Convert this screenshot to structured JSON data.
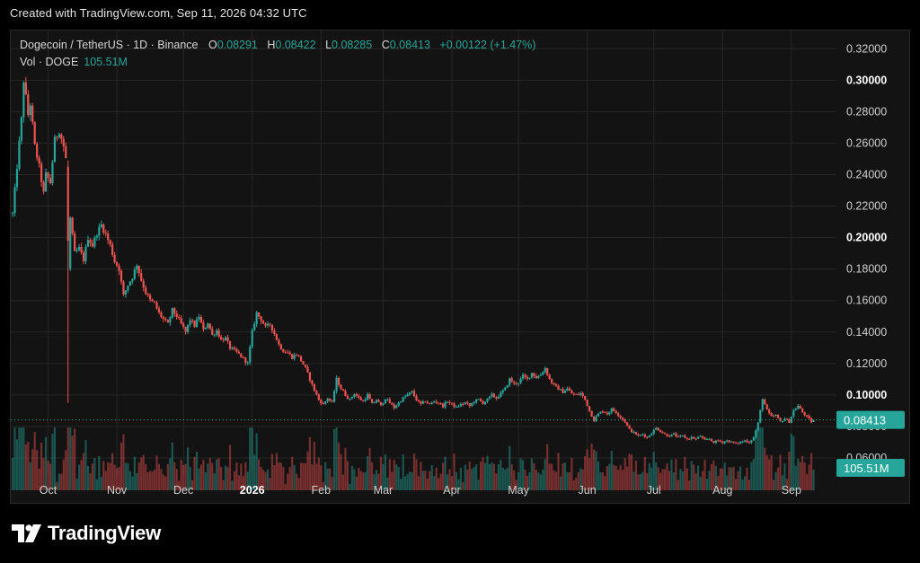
{
  "header": {
    "text": "Created with TradingView.com, Sep 11, 2026 04:32 UTC"
  },
  "legend": {
    "symbol": "Dogecoin / TetherUS · 1D · Binance",
    "open_label": "O",
    "open": "0.08291",
    "high_label": "H",
    "high": "0.08422",
    "low_label": "L",
    "low": "0.08285",
    "close_label": "C",
    "close": "0.08413",
    "change": "+0.00122 (+1.47%)",
    "vol_label": "Vol · DOGE",
    "vol": "105.51M"
  },
  "footer": {
    "brand": "TradingView"
  },
  "colors": {
    "up": "#26a69a",
    "down": "#ef5350",
    "grid": "#262626",
    "axis_text": "#cfcfcf",
    "background": "#131313"
  },
  "chart_data": {
    "type": "candlestick",
    "symbol": "DOGE/USDT",
    "interval": "1D",
    "x_axis": {
      "tick_labels": [
        "Oct",
        "Nov",
        "Dec",
        "2026",
        "Feb",
        "Mar",
        "Apr",
        "May",
        "Jun",
        "Jul",
        "Aug",
        "Sep"
      ]
    },
    "y_axis": {
      "position": "right",
      "ylim": [
        0.052,
        0.327
      ],
      "ticks": [
        0.06,
        0.08,
        0.1,
        0.12,
        0.14,
        0.16,
        0.18,
        0.2,
        0.22,
        0.24,
        0.26,
        0.28,
        0.3,
        0.32
      ],
      "tick_labels": [
        "0.06000",
        "0.08000",
        "0.10000",
        "0.12000",
        "0.14000",
        "0.16000",
        "0.18000",
        "0.20000",
        "0.22000",
        "0.24000",
        "0.26000",
        "0.28000",
        "0.30000",
        "0.32000"
      ],
      "bold_ticks": [
        "0.10000",
        "0.20000",
        "0.30000"
      ]
    },
    "grid": true,
    "last_price": {
      "value": 0.08413,
      "label": "0.08413"
    },
    "volume_last": {
      "label": "105.51M"
    },
    "price_path": [
      {
        "month": "Sep",
        "day": 15,
        "price": 0.215
      },
      {
        "month": "Sep",
        "day": 17,
        "price": 0.245
      },
      {
        "month": "Sep",
        "day": 19,
        "price": 0.275
      },
      {
        "month": "Sep",
        "day": 20,
        "price": 0.3
      },
      {
        "month": "Sep",
        "day": 22,
        "price": 0.278
      },
      {
        "month": "Sep",
        "day": 23,
        "price": 0.285
      },
      {
        "month": "Sep",
        "day": 25,
        "price": 0.258
      },
      {
        "month": "Sep",
        "day": 27,
        "price": 0.245
      },
      {
        "month": "Sep",
        "day": 29,
        "price": 0.228
      },
      {
        "month": "Sep",
        "day": 30,
        "price": 0.24
      },
      {
        "month": "Oct",
        "day": 2,
        "price": 0.235
      },
      {
        "month": "Oct",
        "day": 4,
        "price": 0.262
      },
      {
        "month": "Oct",
        "day": 6,
        "price": 0.268
      },
      {
        "month": "Oct",
        "day": 8,
        "price": 0.258
      },
      {
        "month": "Oct",
        "day": 9,
        "price": 0.25
      },
      {
        "month": "Oct",
        "day": 10,
        "price": 0.18
      },
      {
        "month": "Oct",
        "day": 11,
        "price": 0.212
      },
      {
        "month": "Oct",
        "day": 13,
        "price": 0.19
      },
      {
        "month": "Oct",
        "day": 15,
        "price": 0.193
      },
      {
        "month": "Oct",
        "day": 17,
        "price": 0.186
      },
      {
        "month": "Oct",
        "day": 19,
        "price": 0.2
      },
      {
        "month": "Oct",
        "day": 21,
        "price": 0.195
      },
      {
        "month": "Oct",
        "day": 23,
        "price": 0.203
      },
      {
        "month": "Oct",
        "day": 25,
        "price": 0.208
      },
      {
        "month": "Oct",
        "day": 27,
        "price": 0.202
      },
      {
        "month": "Oct",
        "day": 29,
        "price": 0.195
      },
      {
        "month": "Oct",
        "day": 31,
        "price": 0.185
      },
      {
        "month": "Nov",
        "day": 2,
        "price": 0.18
      },
      {
        "month": "Nov",
        "day": 4,
        "price": 0.163
      },
      {
        "month": "Nov",
        "day": 6,
        "price": 0.17
      },
      {
        "month": "Nov",
        "day": 8,
        "price": 0.175
      },
      {
        "month": "Nov",
        "day": 10,
        "price": 0.183
      },
      {
        "month": "Nov",
        "day": 12,
        "price": 0.173
      },
      {
        "month": "Nov",
        "day": 14,
        "price": 0.165
      },
      {
        "month": "Nov",
        "day": 16,
        "price": 0.16
      },
      {
        "month": "Nov",
        "day": 18,
        "price": 0.158
      },
      {
        "month": "Nov",
        "day": 20,
        "price": 0.152
      },
      {
        "month": "Nov",
        "day": 22,
        "price": 0.148
      },
      {
        "month": "Nov",
        "day": 24,
        "price": 0.145
      },
      {
        "month": "Nov",
        "day": 26,
        "price": 0.154
      },
      {
        "month": "Nov",
        "day": 28,
        "price": 0.15
      },
      {
        "month": "Nov",
        "day": 30,
        "price": 0.145
      },
      {
        "month": "Dec",
        "day": 2,
        "price": 0.14
      },
      {
        "month": "Dec",
        "day": 4,
        "price": 0.148
      },
      {
        "month": "Dec",
        "day": 6,
        "price": 0.144
      },
      {
        "month": "Dec",
        "day": 8,
        "price": 0.15
      },
      {
        "month": "Dec",
        "day": 10,
        "price": 0.141
      },
      {
        "month": "Dec",
        "day": 12,
        "price": 0.146
      },
      {
        "month": "Dec",
        "day": 14,
        "price": 0.138
      },
      {
        "month": "Dec",
        "day": 16,
        "price": 0.141
      },
      {
        "month": "Dec",
        "day": 18,
        "price": 0.135
      },
      {
        "month": "Dec",
        "day": 20,
        "price": 0.136
      },
      {
        "month": "Dec",
        "day": 22,
        "price": 0.13
      },
      {
        "month": "Dec",
        "day": 24,
        "price": 0.128
      },
      {
        "month": "Dec",
        "day": 26,
        "price": 0.126
      },
      {
        "month": "Dec",
        "day": 28,
        "price": 0.123
      },
      {
        "month": "Dec",
        "day": 30,
        "price": 0.12
      },
      {
        "month": "Jan",
        "day": 1,
        "price": 0.14
      },
      {
        "month": "Jan",
        "day": 3,
        "price": 0.152
      },
      {
        "month": "Jan",
        "day": 5,
        "price": 0.148
      },
      {
        "month": "Jan",
        "day": 7,
        "price": 0.143
      },
      {
        "month": "Jan",
        "day": 9,
        "price": 0.145
      },
      {
        "month": "Jan",
        "day": 11,
        "price": 0.139
      },
      {
        "month": "Jan",
        "day": 13,
        "price": 0.132
      },
      {
        "month": "Jan",
        "day": 15,
        "price": 0.128
      },
      {
        "month": "Jan",
        "day": 17,
        "price": 0.127
      },
      {
        "month": "Jan",
        "day": 19,
        "price": 0.124
      },
      {
        "month": "Jan",
        "day": 21,
        "price": 0.126
      },
      {
        "month": "Jan",
        "day": 23,
        "price": 0.122
      },
      {
        "month": "Jan",
        "day": 25,
        "price": 0.117
      },
      {
        "month": "Jan",
        "day": 27,
        "price": 0.11
      },
      {
        "month": "Jan",
        "day": 29,
        "price": 0.103
      },
      {
        "month": "Jan",
        "day": 31,
        "price": 0.097
      },
      {
        "month": "Feb",
        "day": 2,
        "price": 0.094
      },
      {
        "month": "Feb",
        "day": 4,
        "price": 0.098
      },
      {
        "month": "Feb",
        "day": 6,
        "price": 0.095
      },
      {
        "month": "Feb",
        "day": 8,
        "price": 0.11
      },
      {
        "month": "Feb",
        "day": 10,
        "price": 0.104
      },
      {
        "month": "Feb",
        "day": 12,
        "price": 0.1
      },
      {
        "month": "Feb",
        "day": 14,
        "price": 0.097
      },
      {
        "month": "Feb",
        "day": 16,
        "price": 0.101
      },
      {
        "month": "Feb",
        "day": 18,
        "price": 0.098
      },
      {
        "month": "Feb",
        "day": 20,
        "price": 0.096
      },
      {
        "month": "Feb",
        "day": 22,
        "price": 0.1
      },
      {
        "month": "Feb",
        "day": 24,
        "price": 0.094
      },
      {
        "month": "Feb",
        "day": 26,
        "price": 0.097
      },
      {
        "month": "Feb",
        "day": 28,
        "price": 0.093
      },
      {
        "month": "Mar",
        "day": 2,
        "price": 0.098
      },
      {
        "month": "Mar",
        "day": 4,
        "price": 0.095
      },
      {
        "month": "Mar",
        "day": 6,
        "price": 0.092
      },
      {
        "month": "Mar",
        "day": 8,
        "price": 0.095
      },
      {
        "month": "Mar",
        "day": 10,
        "price": 0.098
      },
      {
        "month": "Mar",
        "day": 12,
        "price": 0.1
      },
      {
        "month": "Mar",
        "day": 14,
        "price": 0.102
      },
      {
        "month": "Mar",
        "day": 16,
        "price": 0.097
      },
      {
        "month": "Mar",
        "day": 18,
        "price": 0.094
      },
      {
        "month": "Mar",
        "day": 20,
        "price": 0.096
      },
      {
        "month": "Mar",
        "day": 22,
        "price": 0.094
      },
      {
        "month": "Mar",
        "day": 24,
        "price": 0.096
      },
      {
        "month": "Mar",
        "day": 26,
        "price": 0.095
      },
      {
        "month": "Mar",
        "day": 28,
        "price": 0.093
      },
      {
        "month": "Mar",
        "day": 30,
        "price": 0.096
      },
      {
        "month": "Apr",
        "day": 1,
        "price": 0.094
      },
      {
        "month": "Apr",
        "day": 3,
        "price": 0.092
      },
      {
        "month": "Apr",
        "day": 5,
        "price": 0.094
      },
      {
        "month": "Apr",
        "day": 7,
        "price": 0.095
      },
      {
        "month": "Apr",
        "day": 9,
        "price": 0.093
      },
      {
        "month": "Apr",
        "day": 11,
        "price": 0.096
      },
      {
        "month": "Apr",
        "day": 13,
        "price": 0.097
      },
      {
        "month": "Apr",
        "day": 15,
        "price": 0.095
      },
      {
        "month": "Apr",
        "day": 17,
        "price": 0.097
      },
      {
        "month": "Apr",
        "day": 19,
        "price": 0.1
      },
      {
        "month": "Apr",
        "day": 21,
        "price": 0.098
      },
      {
        "month": "Apr",
        "day": 23,
        "price": 0.101
      },
      {
        "month": "Apr",
        "day": 25,
        "price": 0.104
      },
      {
        "month": "Apr",
        "day": 27,
        "price": 0.11
      },
      {
        "month": "Apr",
        "day": 29,
        "price": 0.107
      },
      {
        "month": "May",
        "day": 1,
        "price": 0.108
      },
      {
        "month": "May",
        "day": 3,
        "price": 0.112
      },
      {
        "month": "May",
        "day": 5,
        "price": 0.11
      },
      {
        "month": "May",
        "day": 7,
        "price": 0.114
      },
      {
        "month": "May",
        "day": 9,
        "price": 0.111
      },
      {
        "month": "May",
        "day": 11,
        "price": 0.113
      },
      {
        "month": "May",
        "day": 13,
        "price": 0.117
      },
      {
        "month": "May",
        "day": 15,
        "price": 0.11
      },
      {
        "month": "May",
        "day": 17,
        "price": 0.106
      },
      {
        "month": "May",
        "day": 19,
        "price": 0.104
      },
      {
        "month": "May",
        "day": 21,
        "price": 0.102
      },
      {
        "month": "May",
        "day": 23,
        "price": 0.104
      },
      {
        "month": "May",
        "day": 25,
        "price": 0.101
      },
      {
        "month": "May",
        "day": 27,
        "price": 0.1
      },
      {
        "month": "May",
        "day": 29,
        "price": 0.101
      },
      {
        "month": "May",
        "day": 31,
        "price": 0.097
      },
      {
        "month": "Jun",
        "day": 2,
        "price": 0.09
      },
      {
        "month": "Jun",
        "day": 4,
        "price": 0.084
      },
      {
        "month": "Jun",
        "day": 6,
        "price": 0.088
      },
      {
        "month": "Jun",
        "day": 8,
        "price": 0.09
      },
      {
        "month": "Jun",
        "day": 10,
        "price": 0.088
      },
      {
        "month": "Jun",
        "day": 12,
        "price": 0.091
      },
      {
        "month": "Jun",
        "day": 14,
        "price": 0.089
      },
      {
        "month": "Jun",
        "day": 16,
        "price": 0.086
      },
      {
        "month": "Jun",
        "day": 18,
        "price": 0.083
      },
      {
        "month": "Jun",
        "day": 20,
        "price": 0.078
      },
      {
        "month": "Jun",
        "day": 22,
        "price": 0.076
      },
      {
        "month": "Jun",
        "day": 24,
        "price": 0.074
      },
      {
        "month": "Jun",
        "day": 26,
        "price": 0.075
      },
      {
        "month": "Jun",
        "day": 28,
        "price": 0.073
      },
      {
        "month": "Jun",
        "day": 30,
        "price": 0.076
      },
      {
        "month": "Jul",
        "day": 2,
        "price": 0.079
      },
      {
        "month": "Jul",
        "day": 4,
        "price": 0.077
      },
      {
        "month": "Jul",
        "day": 6,
        "price": 0.075
      },
      {
        "month": "Jul",
        "day": 8,
        "price": 0.074
      },
      {
        "month": "Jul",
        "day": 10,
        "price": 0.075
      },
      {
        "month": "Jul",
        "day": 12,
        "price": 0.073
      },
      {
        "month": "Jul",
        "day": 14,
        "price": 0.074
      },
      {
        "month": "Jul",
        "day": 16,
        "price": 0.072
      },
      {
        "month": "Jul",
        "day": 18,
        "price": 0.073
      },
      {
        "month": "Jul",
        "day": 20,
        "price": 0.072
      },
      {
        "month": "Jul",
        "day": 22,
        "price": 0.074
      },
      {
        "month": "Jul",
        "day": 24,
        "price": 0.071
      },
      {
        "month": "Jul",
        "day": 26,
        "price": 0.072
      },
      {
        "month": "Jul",
        "day": 28,
        "price": 0.07
      },
      {
        "month": "Jul",
        "day": 30,
        "price": 0.071
      },
      {
        "month": "Aug",
        "day": 1,
        "price": 0.07
      },
      {
        "month": "Aug",
        "day": 3,
        "price": 0.071
      },
      {
        "month": "Aug",
        "day": 5,
        "price": 0.07
      },
      {
        "month": "Aug",
        "day": 7,
        "price": 0.069
      },
      {
        "month": "Aug",
        "day": 9,
        "price": 0.07
      },
      {
        "month": "Aug",
        "day": 11,
        "price": 0.071
      },
      {
        "month": "Aug",
        "day": 13,
        "price": 0.07
      },
      {
        "month": "Aug",
        "day": 15,
        "price": 0.073
      },
      {
        "month": "Aug",
        "day": 17,
        "price": 0.082
      },
      {
        "month": "Aug",
        "day": 19,
        "price": 0.098
      },
      {
        "month": "Aug",
        "day": 21,
        "price": 0.09
      },
      {
        "month": "Aug",
        "day": 23,
        "price": 0.086
      },
      {
        "month": "Aug",
        "day": 25,
        "price": 0.087
      },
      {
        "month": "Aug",
        "day": 27,
        "price": 0.083
      },
      {
        "month": "Aug",
        "day": 29,
        "price": 0.085
      },
      {
        "month": "Aug",
        "day": 31,
        "price": 0.083
      },
      {
        "month": "Sep",
        "day": 2,
        "price": 0.09
      },
      {
        "month": "Sep",
        "day": 4,
        "price": 0.093
      },
      {
        "month": "Sep",
        "day": 6,
        "price": 0.089
      },
      {
        "month": "Sep",
        "day": 8,
        "price": 0.086
      },
      {
        "month": "Sep",
        "day": 10,
        "price": 0.0829
      },
      {
        "month": "Sep",
        "day": 11,
        "price": 0.08413
      }
    ]
  }
}
